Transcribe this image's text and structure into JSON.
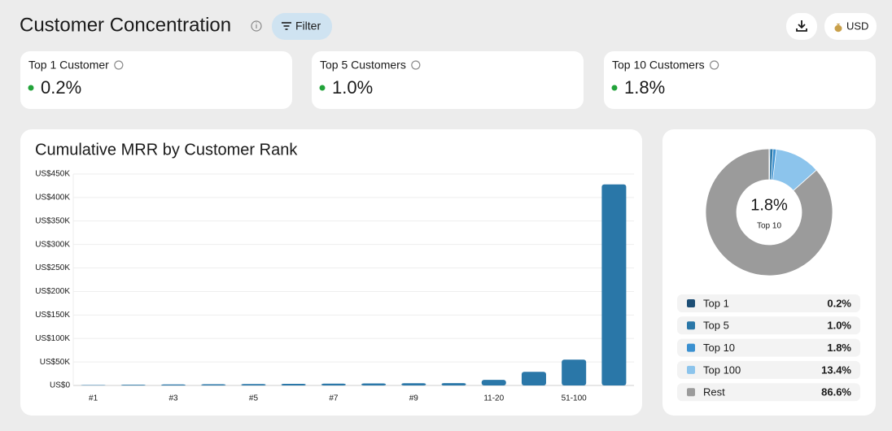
{
  "header": {
    "title": "Customer Concentration",
    "filter": "Filter",
    "currency": "USD"
  },
  "kpis": [
    {
      "label": "Top 1 Customer",
      "value": "0.2%"
    },
    {
      "label": "Top 5 Customers",
      "value": "1.0%"
    },
    {
      "label": "Top 10 Customers",
      "value": "1.8%"
    }
  ],
  "chart_data": [
    {
      "type": "bar",
      "title": "Cumulative MRR by Customer Rank",
      "categories": [
        "#1",
        null,
        "#3",
        null,
        "#5",
        null,
        "#7",
        null,
        "#9",
        null,
        "11-20",
        null,
        "51-100",
        null
      ],
      "values": [
        900,
        1500,
        2100,
        2600,
        3100,
        3500,
        3900,
        4300,
        4700,
        5000,
        12000,
        29000,
        55000,
        428000
      ],
      "color": "#2a77a8",
      "ylim": [
        0,
        450000
      ],
      "yticks": [
        {
          "value": 0,
          "label": "US$0"
        },
        {
          "value": 50000,
          "label": "US$50K"
        },
        {
          "value": 100000,
          "label": "US$100K"
        },
        {
          "value": 150000,
          "label": "US$150K"
        },
        {
          "value": 200000,
          "label": "US$200K"
        },
        {
          "value": 250000,
          "label": "US$250K"
        },
        {
          "value": 300000,
          "label": "US$300K"
        },
        {
          "value": 350000,
          "label": "US$350K"
        },
        {
          "value": 400000,
          "label": "US$400K"
        },
        {
          "value": 450000,
          "label": "US$450K"
        }
      ],
      "grid": true
    },
    {
      "type": "pie",
      "categories": [
        "Top 1",
        "Top 5",
        "Top 10",
        "Top 100",
        "Rest"
      ],
      "values": [
        0.2,
        1.0,
        1.8,
        13.4,
        86.6
      ],
      "value_labels": [
        "0.2%",
        "1.0%",
        "1.8%",
        "13.4%",
        "86.6%"
      ],
      "colors": [
        "#1d4e75",
        "#2a77a8",
        "#3a90d0",
        "#8cc4ec",
        "#9b9b9b"
      ]
    }
  ]
}
